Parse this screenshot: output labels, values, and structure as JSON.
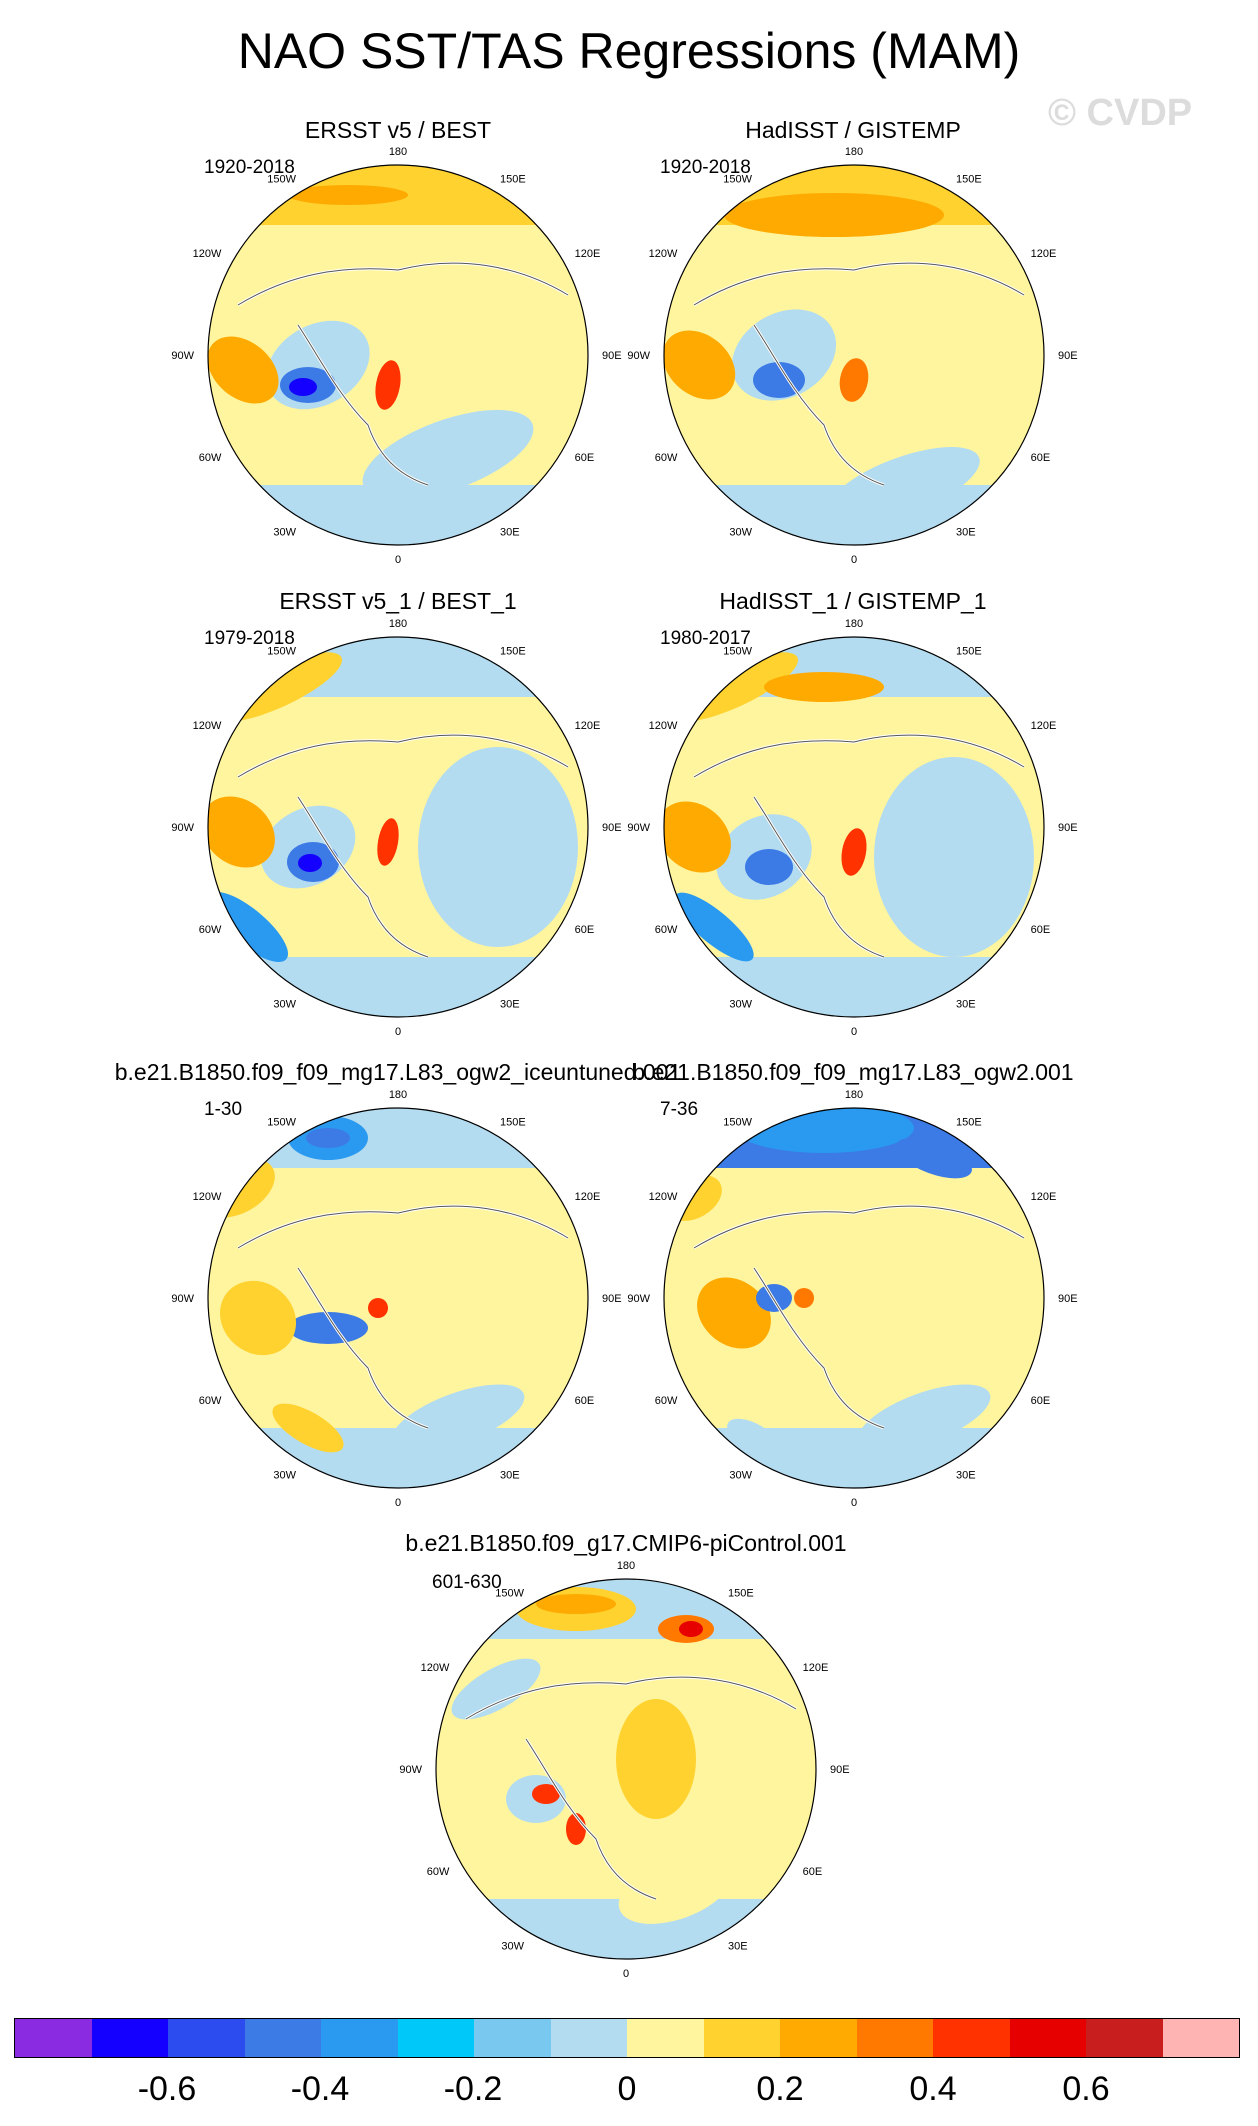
{
  "title": "NAO SST/TAS Regressions (MAM)",
  "watermark": "© CVDP",
  "lon_labels": [
    "180",
    "150E",
    "120E",
    "90E",
    "60E",
    "30E",
    "0",
    "30W",
    "60W",
    "90W",
    "120W",
    "150W"
  ],
  "panels": [
    {
      "title": "ERSST v5 / BEST",
      "period": "1920-2018"
    },
    {
      "title": "HadISST / GISTEMP",
      "period": "1920-2018"
    },
    {
      "title": "ERSST v5_1 / BEST_1",
      "period": "1979-2018"
    },
    {
      "title": "HadISST_1 / GISTEMP_1",
      "period": "1980-2017"
    },
    {
      "title": "b.e21.B1850.f09_f09_mg17.L83_ogw2_iceuntuned.001",
      "period": "1-30"
    },
    {
      "title": "b.e21.B1850.f09_f09_mg17.L83_ogw2.001",
      "period": "7-36"
    },
    {
      "title": "b.e21.B1850.f09_g17.CMIP6-piControl.001",
      "period": "601-630"
    }
  ],
  "colorbar": {
    "colors": [
      "#8a2be2",
      "#1400ff",
      "#2d4cf0",
      "#3c7ae6",
      "#2a9af0",
      "#00c8f8",
      "#78c8f0",
      "#b4dcf0",
      "#fff59e",
      "#ffd230",
      "#ffaa00",
      "#ff7800",
      "#ff3200",
      "#e60000",
      "#c81e1e",
      "#ffb4b4"
    ],
    "tick_labels": [
      "-0.6",
      "-0.4",
      "-0.2",
      "0",
      "0.2",
      "0.4",
      "0.6"
    ]
  }
}
